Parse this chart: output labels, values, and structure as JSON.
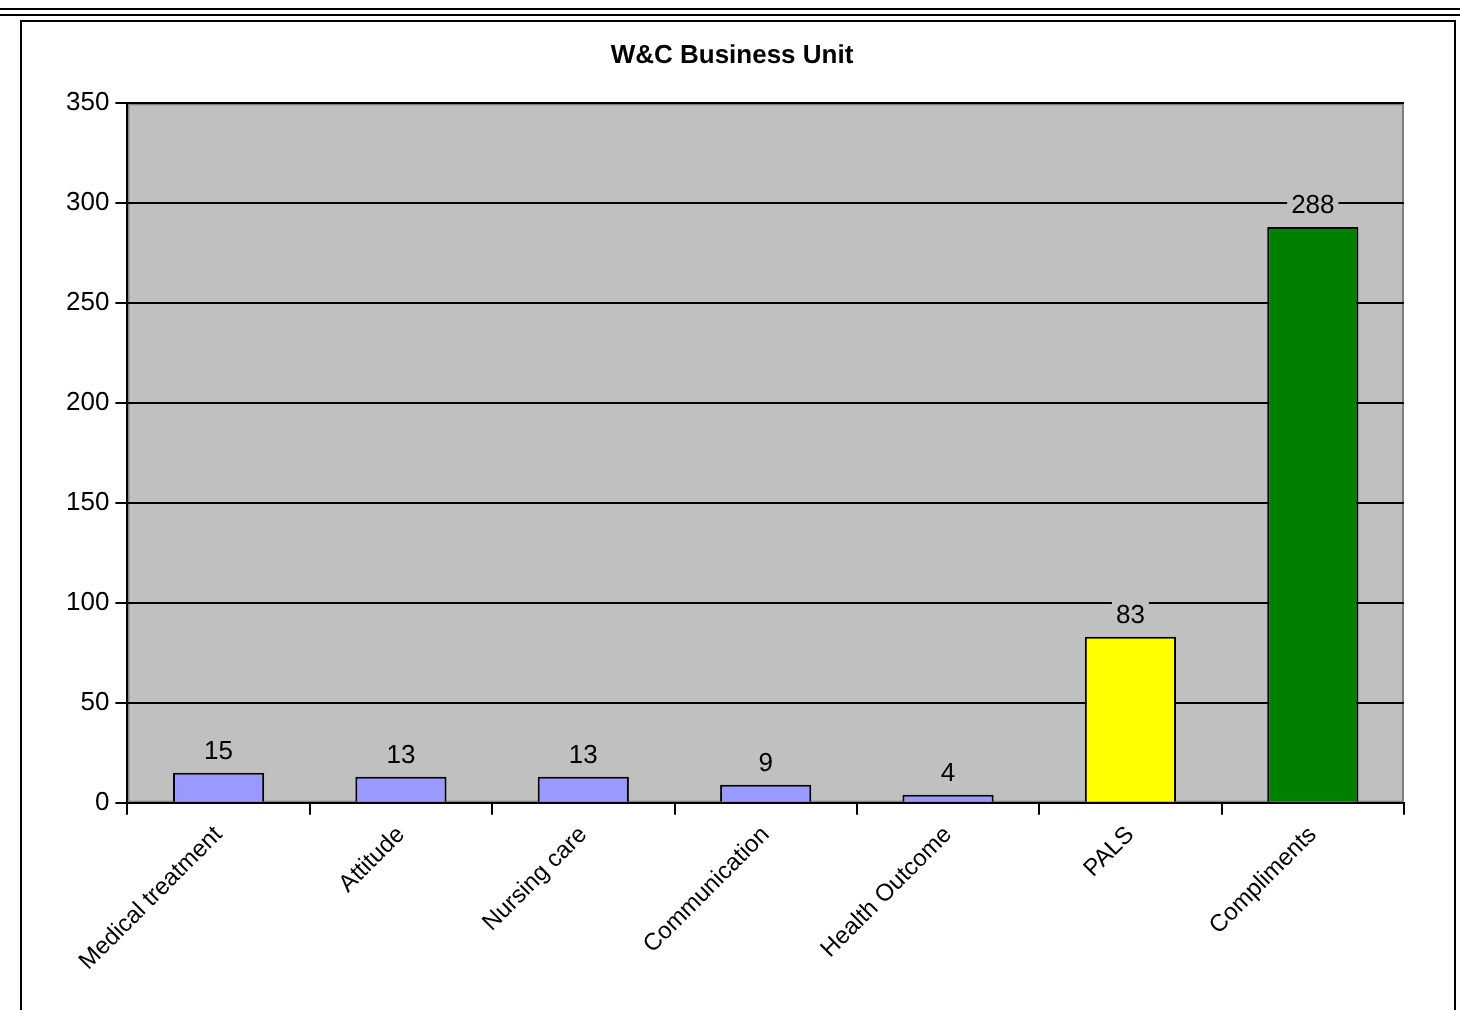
{
  "chart_data": {
    "type": "bar",
    "title": "W&C Business Unit",
    "categories": [
      "Medical treatment",
      "Attitude",
      "Nursing care",
      "Communication",
      "Health Outcome",
      "PALS",
      "Compliments"
    ],
    "values": [
      15,
      13,
      13,
      9,
      4,
      83,
      288
    ],
    "colors": [
      "#9999ff",
      "#9999ff",
      "#9999ff",
      "#9999ff",
      "#9999ff",
      "#ffff00",
      "#008000"
    ],
    "ylim": [
      0,
      350
    ],
    "yticks": [
      0,
      50,
      100,
      150,
      200,
      250,
      300,
      350
    ],
    "grid": "y",
    "data_labels": true
  }
}
